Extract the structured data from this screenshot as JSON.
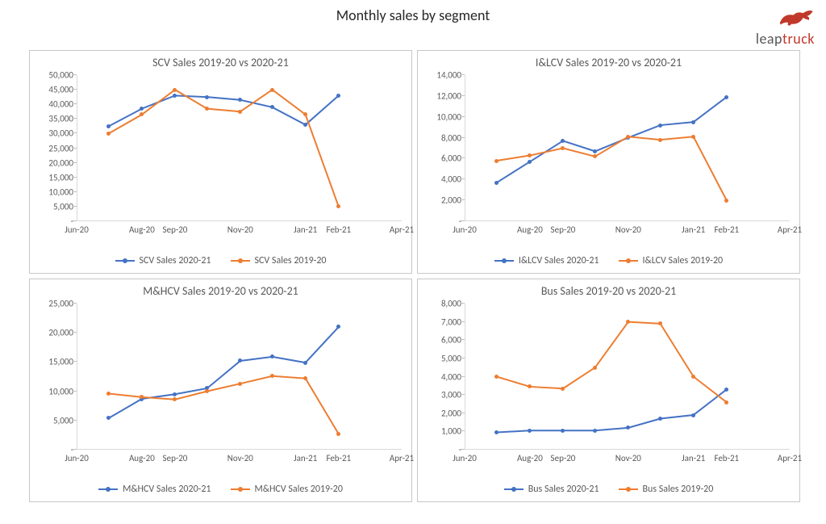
{
  "page_title": "Monthly sales by segment",
  "brand": {
    "text_part1": "leap",
    "text_part2": "truck",
    "bull_color": "#c0392b"
  },
  "colors": {
    "series_a": "#4472c4",
    "series_b": "#ed7d31",
    "axis": "#d9d9d9",
    "tick_text": "#595959",
    "panel_border": "#c7c7c7",
    "background": "#ffffff",
    "title_text": "#595959"
  },
  "typography": {
    "page_title_fontsize": 18,
    "panel_title_fontsize": 14,
    "tick_fontsize": 11,
    "legend_fontsize": 12,
    "font_family": "Calibri"
  },
  "x_axis": {
    "domain_serial": [
      43983,
      44287
    ],
    "tick_serials": [
      43983,
      44044,
      44075,
      44136,
      44197,
      44228,
      44287
    ],
    "tick_labels": [
      "Jun-20",
      "Aug-20",
      "Sep-20",
      "Nov-20",
      "Jan-21",
      "Feb-21",
      "Apr-21"
    ],
    "data_serials": [
      44013,
      44044,
      44075,
      44105,
      44136,
      44166,
      44197,
      44228,
      44256
    ]
  },
  "panels": [
    {
      "key": "scv",
      "title": "SCV Sales 2019-20 vs 2020-21",
      "type": "line",
      "y": {
        "min": 0,
        "max": 50000,
        "step": 5000
      },
      "series": [
        {
          "name": "SCV Sales 2020-21",
          "color_key": "series_a",
          "values": [
            32500,
            38500,
            43000,
            42500,
            41500,
            39000,
            33000,
            43000,
            null
          ]
        },
        {
          "name": "SCV Sales 2019-20",
          "color_key": "series_b",
          "values": [
            30000,
            36500,
            45000,
            38500,
            37500,
            45000,
            36500,
            5000,
            null
          ]
        }
      ],
      "line_width": 2,
      "marker": "circle",
      "marker_size": 5
    },
    {
      "key": "ilcv",
      "title": "I&LCV Sales 2019-20 vs 2020-21",
      "type": "line",
      "y": {
        "min": 0,
        "max": 14000,
        "step": 2000
      },
      "series": [
        {
          "name": "I&LCV Sales 2020-21",
          "color_key": "series_a",
          "values": [
            3700,
            5700,
            7700,
            6700,
            8000,
            9200,
            9500,
            11900,
            null
          ]
        },
        {
          "name": "I&LCV Sales 2019-20",
          "color_key": "series_b",
          "values": [
            5800,
            6300,
            7000,
            6200,
            8100,
            7800,
            8100,
            2000,
            null
          ]
        }
      ],
      "line_width": 2,
      "marker": "circle",
      "marker_size": 5
    },
    {
      "key": "mhcv",
      "title": "M&HCV Sales 2019-20 vs 2020-21",
      "type": "line",
      "y": {
        "min": 0,
        "max": 25000,
        "step": 5000
      },
      "series": [
        {
          "name": "M&HCV Sales 2020-21",
          "color_key": "series_a",
          "values": [
            5400,
            8700,
            9500,
            10500,
            15200,
            15900,
            14900,
            21000,
            null
          ]
        },
        {
          "name": "M&HCV Sales 2019-20",
          "color_key": "series_b",
          "values": [
            9600,
            9000,
            8600,
            10000,
            11300,
            12600,
            12200,
            2700,
            null
          ]
        }
      ],
      "line_width": 2,
      "marker": "circle",
      "marker_size": 5
    },
    {
      "key": "bus",
      "title": "Bus Sales 2019-20 vs 2020-21",
      "type": "line",
      "y": {
        "min": 0,
        "max": 8000,
        "step": 1000
      },
      "series": [
        {
          "name": "Bus Sales 2020-21",
          "color_key": "series_a",
          "values": [
            950,
            1050,
            1050,
            1050,
            1200,
            1700,
            1900,
            3300,
            null
          ]
        },
        {
          "name": "Bus Sales 2019-20",
          "color_key": "series_b",
          "values": [
            4000,
            3450,
            3350,
            4500,
            7000,
            6900,
            4000,
            2600,
            null
          ]
        }
      ],
      "line_width": 2,
      "marker": "circle",
      "marker_size": 5
    }
  ]
}
